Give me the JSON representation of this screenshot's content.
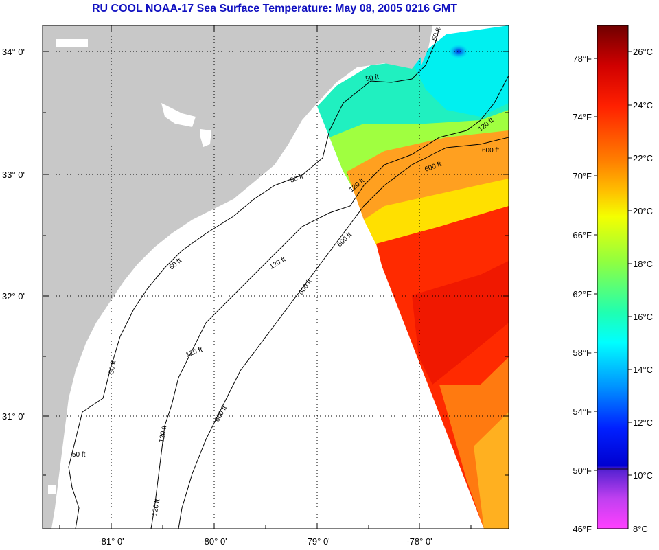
{
  "title": "RU COOL  NOAA-17  Sea Surface Temperature:  May 08, 2005 0216 GMT",
  "map": {
    "lat_ticks": [
      "34° 0'",
      "33° 0'",
      "32° 0'",
      "31° 0'"
    ],
    "lon_ticks": [
      "-81° 0'",
      "-80° 0'",
      "-79° 0'",
      "-78° 0'"
    ],
    "contour_labels": [
      "50 ft",
      "50 ft",
      "50 ft",
      "50 ft",
      "50 ft",
      "50 ft",
      "120 ft",
      "120 ft",
      "120 ft",
      "120 ft",
      "120 ft",
      "120 ft",
      "600 ft",
      "600 ft",
      "600 ft",
      "600 ft",
      "600 ft"
    ],
    "land_color": "#c8c8c8",
    "water_nodata_color": "#ffffff"
  },
  "colorbar": {
    "fahrenheit_labels": [
      "78°F",
      "74°F",
      "70°F",
      "66°F",
      "62°F",
      "58°F",
      "54°F",
      "50°F",
      "46°F"
    ],
    "celsius_labels": [
      "26°C",
      "24°C",
      "22°C",
      "20°C",
      "18°C",
      "16°C",
      "14°C",
      "12°C",
      "10°C",
      "8°C"
    ],
    "colors": [
      "#800000",
      "#e00000",
      "#ff3000",
      "#ff8000",
      "#ffd000",
      "#f0ff00",
      "#a0ff30",
      "#40ff90",
      "#00ffff",
      "#0090ff",
      "#0020ff",
      "#0000c0",
      "#a040e0",
      "#ff40ff"
    ]
  }
}
